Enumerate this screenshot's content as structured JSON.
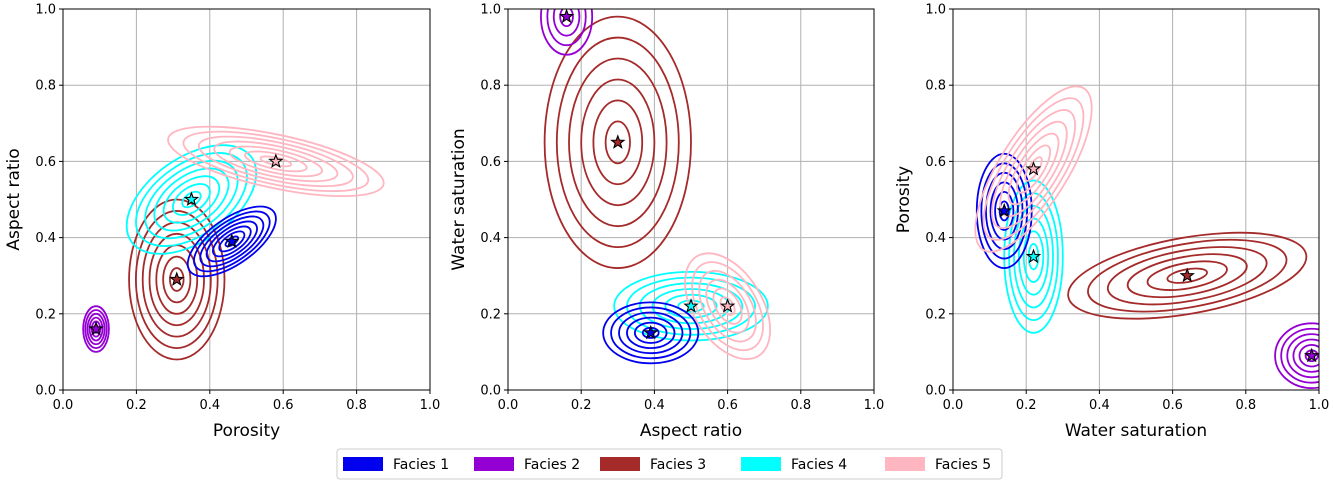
{
  "chart_data": {
    "type": "contour",
    "legend": {
      "placement": "bottom-center",
      "entries": [
        {
          "name": "Facies 1",
          "color": "#0000ee"
        },
        {
          "name": "Facies 2",
          "color": "#9400d3"
        },
        {
          "name": "Facies 3",
          "color": "#a52a2a"
        },
        {
          "name": "Facies 4",
          "color": "#00ffff"
        },
        {
          "name": "Facies 5",
          "color": "#ffb6c1"
        }
      ]
    },
    "panels": [
      {
        "xlabel": "Porosity",
        "ylabel": "Aspect ratio",
        "xlim": [
          0,
          1
        ],
        "ylim": [
          0,
          1
        ],
        "ticks": [
          "0.0",
          "0.2",
          "0.4",
          "0.6",
          "0.8",
          "1.0"
        ],
        "grid": true,
        "facies": [
          {
            "facies": 1,
            "center": [
              0.46,
              0.39
            ],
            "sx": 0.14,
            "sy": 0.06,
            "angle": 35,
            "levels": 7
          },
          {
            "facies": 2,
            "center": [
              0.09,
              0.16
            ],
            "sx": 0.035,
            "sy": 0.06,
            "angle": 0,
            "levels": 6
          },
          {
            "facies": 3,
            "center": [
              0.31,
              0.29
            ],
            "sx": 0.13,
            "sy": 0.21,
            "angle": 0,
            "levels": 7
          },
          {
            "facies": 4,
            "center": [
              0.35,
              0.5
            ],
            "sx": 0.2,
            "sy": 0.11,
            "angle": 35,
            "levels": 7
          },
          {
            "facies": 5,
            "center": [
              0.58,
              0.6
            ],
            "sx": 0.3,
            "sy": 0.07,
            "angle": -12,
            "levels": 7
          }
        ]
      },
      {
        "xlabel": "Aspect ratio",
        "ylabel": "Water saturation",
        "xlim": [
          0,
          1
        ],
        "ylim": [
          0,
          1
        ],
        "ticks": [
          "0.0",
          "0.2",
          "0.4",
          "0.6",
          "0.8",
          "1.0"
        ],
        "grid": true,
        "facies": [
          {
            "facies": 1,
            "center": [
              0.39,
              0.15
            ],
            "sx": 0.13,
            "sy": 0.08,
            "angle": 0,
            "levels": 6
          },
          {
            "facies": 2,
            "center": [
              0.16,
              0.98
            ],
            "sx": 0.07,
            "sy": 0.1,
            "angle": 0,
            "levels": 4
          },
          {
            "facies": 3,
            "center": [
              0.3,
              0.65
            ],
            "sx": 0.2,
            "sy": 0.33,
            "angle": 0,
            "levels": 6
          },
          {
            "facies": 4,
            "center": [
              0.5,
              0.22
            ],
            "sx": 0.21,
            "sy": 0.09,
            "angle": 0,
            "levels": 6
          },
          {
            "facies": 5,
            "center": [
              0.6,
              0.22
            ],
            "sx": 0.16,
            "sy": 0.09,
            "angle": -58,
            "levels": 6
          }
        ]
      },
      {
        "xlabel": "Water saturation",
        "ylabel": "Porosity",
        "xlim": [
          0,
          1
        ],
        "ylim": [
          0,
          1
        ],
        "ticks": [
          "0.0",
          "0.2",
          "0.4",
          "0.6",
          "0.8",
          "1.0"
        ],
        "grid": true,
        "facies": [
          {
            "facies": 1,
            "center": [
              0.14,
              0.47
            ],
            "sx": 0.075,
            "sy": 0.15,
            "angle": 0,
            "levels": 6
          },
          {
            "facies": 2,
            "center": [
              0.98,
              0.09
            ],
            "sx": 0.1,
            "sy": 0.085,
            "angle": 0,
            "levels": 6
          },
          {
            "facies": 3,
            "center": [
              0.64,
              0.3
            ],
            "sx": 0.33,
            "sy": 0.1,
            "angle": 10,
            "levels": 6
          },
          {
            "facies": 4,
            "center": [
              0.22,
              0.35
            ],
            "sx": 0.08,
            "sy": 0.2,
            "angle": 0,
            "levels": 6
          },
          {
            "facies": 5,
            "center": [
              0.22,
              0.58
            ],
            "sx": 0.26,
            "sy": 0.09,
            "angle": 58,
            "levels": 7
          }
        ]
      }
    ]
  }
}
